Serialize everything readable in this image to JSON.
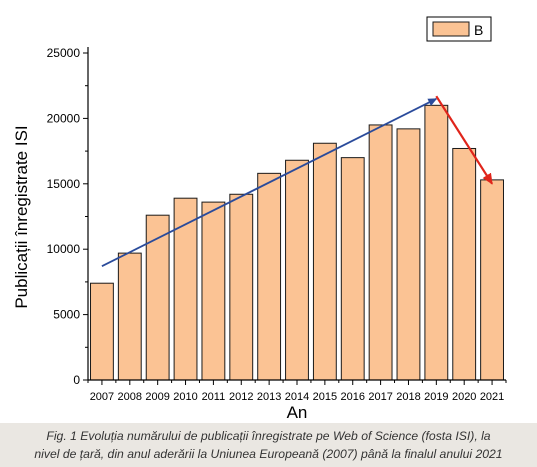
{
  "chart_data": {
    "type": "bar",
    "xlabel": "An",
    "ylabel": "Publicații înregistrate ISI",
    "legend": {
      "label": "B",
      "position": "top-right"
    },
    "ylim": [
      0,
      25000
    ],
    "yticks": [
      0,
      5000,
      10000,
      15000,
      20000,
      25000
    ],
    "categories": [
      "2007",
      "2008",
      "2009",
      "2010",
      "2011",
      "2012",
      "2013",
      "2014",
      "2015",
      "2016",
      "2017",
      "2018",
      "2019",
      "2020",
      "2021"
    ],
    "series": [
      {
        "name": "B",
        "values": [
          7400,
          9700,
          12600,
          13900,
          13600,
          14200,
          15800,
          16800,
          18100,
          17000,
          19500,
          19200,
          21000,
          17700,
          15300
        ]
      }
    ],
    "annotations": [
      {
        "type": "trend-arrow",
        "color": "#2a4b9b",
        "from": [
          "2007",
          8700
        ],
        "to": [
          "2019",
          21500
        ]
      },
      {
        "type": "trend-arrow",
        "color": "#e0251b",
        "from": [
          "2019",
          21700
        ],
        "to": [
          "2021",
          15000
        ]
      }
    ],
    "colors": {
      "bar_fill": "#fbc394",
      "bar_stroke": "#1a1a1a",
      "axis": "#000000"
    }
  },
  "caption": {
    "line1": "Fig. 1 Evoluția numărului de publicații înregistrate pe Web of Science (fosta ISI), la",
    "line2": "nivel de țară, din anul aderării la Uniunea Europeană (2007) până la finalul anului 2021"
  }
}
